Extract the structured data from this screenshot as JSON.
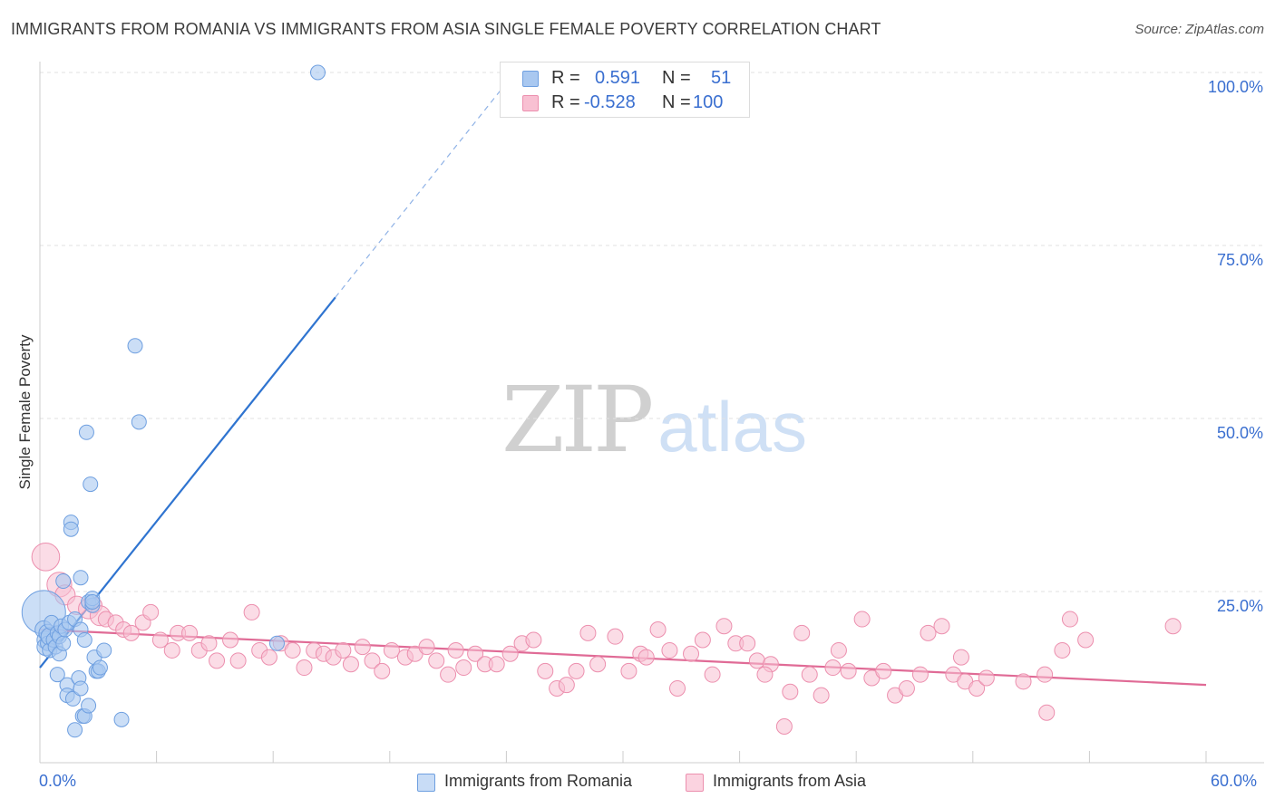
{
  "header": {
    "title": "IMMIGRANTS FROM ROMANIA VS IMMIGRANTS FROM ASIA SINGLE FEMALE POVERTY CORRELATION CHART",
    "source": "Source: ZipAtlas.com"
  },
  "watermark": {
    "zip": "ZIP",
    "atlas": "atlas"
  },
  "legend": {
    "rows": [
      {
        "r_label": "R =",
        "r_value": "0.591",
        "n_label": "N =",
        "n_value": "51",
        "color": "#a9c8f0",
        "border": "#6e9fe0"
      },
      {
        "r_label": "R =",
        "r_value": "-0.528",
        "n_label": "N =",
        "n_value": "100",
        "color": "#f8c0d2",
        "border": "#ec8fae"
      }
    ]
  },
  "colors": {
    "romania_fill": "#a9c8f0",
    "romania_stroke": "#6e9fe0",
    "romania_line": "#2f74d0",
    "asia_fill": "#f8c0d2",
    "asia_stroke": "#ec8fae",
    "asia_line": "#e06b96",
    "grid": "#e2e2e2",
    "axis_text": "#3a6fd0"
  },
  "chart_data": {
    "type": "scatter",
    "title": "IMMIGRANTS FROM ROMANIA VS IMMIGRANTS FROM ASIA SINGLE FEMALE POVERTY CORRELATION CHART",
    "xlabel": "",
    "ylabel": "Single Female Poverty",
    "xlim": [
      0,
      60
    ],
    "ylim": [
      0,
      105
    ],
    "x_tick_labels": [
      "0.0%",
      "60.0%"
    ],
    "y_ticks": [
      25,
      50,
      75,
      100
    ],
    "y_tick_labels": [
      "25.0%",
      "50.0%",
      "75.0%",
      "100.0%"
    ],
    "grid": true,
    "legend_position": "bottom-center",
    "series": [
      {
        "name": "Immigrants from Romania",
        "r": 0.591,
        "n": 51,
        "trend": {
          "x0": 0,
          "y0": 14,
          "x1": 15.2,
          "y1": 67.5,
          "dashed_to_x": 24.5
        },
        "points": [
          [
            0.2,
            22.0,
            3
          ],
          [
            0.2,
            19.5,
            1.2
          ],
          [
            0.3,
            18.0,
            1.2
          ],
          [
            0.3,
            17.0,
            1.2
          ],
          [
            0.4,
            19.0,
            1.2
          ],
          [
            0.4,
            17.5,
            1
          ],
          [
            0.5,
            18.5,
            1.2
          ],
          [
            0.5,
            16.5,
            1
          ],
          [
            0.6,
            20.5,
            1
          ],
          [
            0.7,
            18.0,
            1
          ],
          [
            0.8,
            17.0,
            1
          ],
          [
            0.9,
            19.0,
            1
          ],
          [
            0.9,
            13.0,
            1
          ],
          [
            1.0,
            18.5,
            1
          ],
          [
            1.0,
            16.0,
            1
          ],
          [
            1.1,
            20.0,
            1
          ],
          [
            1.2,
            17.5,
            1
          ],
          [
            1.2,
            26.5,
            1
          ],
          [
            1.3,
            19.5,
            1
          ],
          [
            1.4,
            11.5,
            1
          ],
          [
            1.4,
            10.0,
            1
          ],
          [
            1.5,
            20.5,
            1
          ],
          [
            1.6,
            35.0,
            1
          ],
          [
            1.6,
            34.0,
            1
          ],
          [
            1.7,
            9.5,
            1
          ],
          [
            1.8,
            21.0,
            1
          ],
          [
            1.8,
            5.0,
            1
          ],
          [
            2.0,
            12.5,
            1
          ],
          [
            2.1,
            19.5,
            1
          ],
          [
            2.1,
            11.0,
            1
          ],
          [
            2.1,
            27.0,
            1
          ],
          [
            2.2,
            7.0,
            1
          ],
          [
            2.3,
            18.0,
            1
          ],
          [
            2.3,
            7.0,
            1
          ],
          [
            2.4,
            48.0,
            1
          ],
          [
            2.5,
            23.5,
            1
          ],
          [
            2.5,
            8.5,
            1
          ],
          [
            2.6,
            40.5,
            1
          ],
          [
            2.7,
            23.0,
            1
          ],
          [
            2.7,
            24.0,
            1
          ],
          [
            2.7,
            23.5,
            1
          ],
          [
            2.8,
            15.5,
            1
          ],
          [
            2.9,
            13.5,
            1
          ],
          [
            3.0,
            13.5,
            1
          ],
          [
            3.1,
            14.0,
            1
          ],
          [
            3.3,
            16.5,
            1
          ],
          [
            4.2,
            6.5,
            1
          ],
          [
            4.9,
            60.5,
            1
          ],
          [
            5.1,
            49.5,
            1
          ],
          [
            12.2,
            17.5,
            1
          ],
          [
            14.3,
            100.0,
            1
          ]
        ]
      },
      {
        "name": "Immigrants from Asia",
        "r": -0.528,
        "n": 100,
        "trend": {
          "x0": 0,
          "y0": 19.5,
          "x1": 60,
          "y1": 11.5
        },
        "points": [
          [
            0.3,
            30.0,
            1.8
          ],
          [
            1.0,
            26.0,
            1.6
          ],
          [
            1.3,
            24.5,
            1.3
          ],
          [
            1.9,
            23.0,
            1.2
          ],
          [
            2.5,
            22.5,
            1.3
          ],
          [
            2.8,
            23.0,
            1
          ],
          [
            3.1,
            21.5,
            1.3
          ],
          [
            3.4,
            21.0,
            1
          ],
          [
            3.9,
            20.5,
            1
          ],
          [
            4.3,
            19.5,
            1
          ],
          [
            4.7,
            19.0,
            1
          ],
          [
            5.3,
            20.5,
            1
          ],
          [
            5.7,
            22.0,
            1
          ],
          [
            6.2,
            18.0,
            1
          ],
          [
            6.8,
            16.5,
            1
          ],
          [
            7.1,
            19.0,
            1
          ],
          [
            7.7,
            19.0,
            1
          ],
          [
            8.2,
            16.5,
            1
          ],
          [
            8.7,
            17.5,
            1
          ],
          [
            9.1,
            15.0,
            1
          ],
          [
            9.8,
            18.0,
            1
          ],
          [
            10.2,
            15.0,
            1
          ],
          [
            10.9,
            22.0,
            1
          ],
          [
            11.3,
            16.5,
            1
          ],
          [
            11.8,
            15.5,
            1
          ],
          [
            12.4,
            17.5,
            1
          ],
          [
            13.0,
            16.5,
            1
          ],
          [
            13.6,
            14.0,
            1
          ],
          [
            14.1,
            16.5,
            1
          ],
          [
            14.6,
            16.0,
            1
          ],
          [
            15.1,
            15.5,
            1
          ],
          [
            15.6,
            16.5,
            1
          ],
          [
            16.0,
            14.5,
            1
          ],
          [
            16.6,
            17.0,
            1
          ],
          [
            17.1,
            15.0,
            1
          ],
          [
            17.6,
            13.5,
            1
          ],
          [
            18.1,
            16.5,
            1
          ],
          [
            18.8,
            15.5,
            1
          ],
          [
            19.3,
            16.0,
            1
          ],
          [
            19.9,
            17.0,
            1
          ],
          [
            20.4,
            15.0,
            1
          ],
          [
            21.0,
            13.0,
            1
          ],
          [
            21.4,
            16.5,
            1
          ],
          [
            21.8,
            14.0,
            1
          ],
          [
            22.4,
            16.0,
            1
          ],
          [
            22.9,
            14.5,
            1
          ],
          [
            23.5,
            14.5,
            1
          ],
          [
            24.2,
            16.0,
            1
          ],
          [
            24.8,
            17.5,
            1
          ],
          [
            25.4,
            18.0,
            1
          ],
          [
            26.0,
            13.5,
            1
          ],
          [
            26.6,
            11.0,
            1
          ],
          [
            27.1,
            11.5,
            1
          ],
          [
            27.6,
            13.5,
            1
          ],
          [
            28.2,
            19.0,
            1
          ],
          [
            28.7,
            14.5,
            1
          ],
          [
            29.6,
            18.5,
            1
          ],
          [
            30.3,
            13.5,
            1
          ],
          [
            30.9,
            16.0,
            1
          ],
          [
            31.2,
            15.5,
            1
          ],
          [
            31.8,
            19.5,
            1
          ],
          [
            32.4,
            16.5,
            1
          ],
          [
            32.8,
            11.0,
            1
          ],
          [
            33.5,
            16.0,
            1
          ],
          [
            34.1,
            18.0,
            1
          ],
          [
            34.6,
            13.0,
            1
          ],
          [
            35.2,
            20.0,
            1
          ],
          [
            35.8,
            17.5,
            1
          ],
          [
            36.4,
            17.5,
            1
          ],
          [
            36.9,
            15.0,
            1
          ],
          [
            37.6,
            14.5,
            1
          ],
          [
            37.3,
            13.0,
            1
          ],
          [
            38.3,
            5.5,
            1
          ],
          [
            38.6,
            10.5,
            1
          ],
          [
            39.2,
            19.0,
            1
          ],
          [
            39.6,
            13.0,
            1
          ],
          [
            40.2,
            10.0,
            1
          ],
          [
            40.8,
            14.0,
            1
          ],
          [
            41.1,
            16.5,
            1
          ],
          [
            41.6,
            13.5,
            1
          ],
          [
            42.3,
            21.0,
            1
          ],
          [
            42.8,
            12.5,
            1
          ],
          [
            43.4,
            13.5,
            1
          ],
          [
            44.0,
            10.0,
            1
          ],
          [
            44.6,
            11.0,
            1
          ],
          [
            45.3,
            13.0,
            1
          ],
          [
            45.7,
            19.0,
            1
          ],
          [
            46.4,
            20.0,
            1
          ],
          [
            47.0,
            13.0,
            1
          ],
          [
            47.6,
            12.0,
            1
          ],
          [
            48.2,
            11.0,
            1
          ],
          [
            48.7,
            12.5,
            1
          ],
          [
            50.6,
            12.0,
            1
          ],
          [
            51.7,
            13.0,
            1
          ],
          [
            52.6,
            16.5,
            1
          ],
          [
            53.8,
            18.0,
            1
          ],
          [
            51.8,
            7.5,
            1
          ],
          [
            58.3,
            20.0,
            1
          ],
          [
            53.0,
            21.0,
            1
          ],
          [
            47.4,
            15.5,
            1
          ]
        ]
      }
    ]
  },
  "bottom_legend": [
    {
      "label": "Immigrants from Romania"
    },
    {
      "label": "Immigrants from Asia"
    }
  ]
}
